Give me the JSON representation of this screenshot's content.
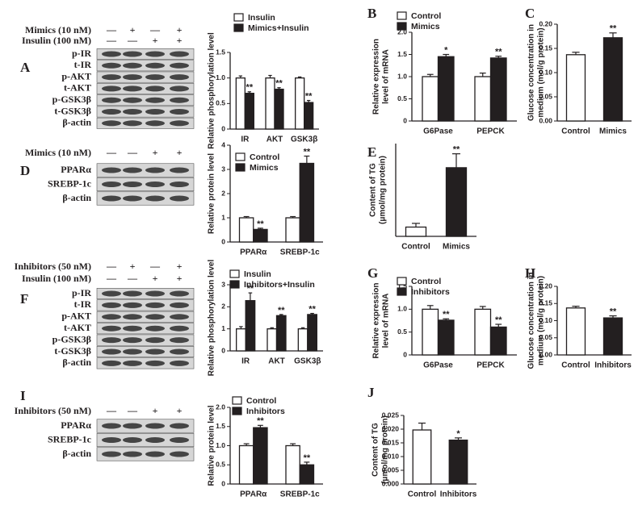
{
  "chart_data": [
    {
      "type": "bar",
      "ylabel": [
        "Relative phosphorylation level"
      ],
      "categories": [
        "IR",
        "AKT",
        "GSK3β"
      ],
      "ylim": [
        0,
        1.5
      ],
      "yticks": [
        0,
        0.5,
        {
          "value": 1,
          "label": "1.0"
        },
        1.5
      ],
      "series": [
        {
          "name": "Insulin",
          "color": "#ffffff",
          "values": [
            1.0,
            1.0,
            1.0
          ],
          "errors": [
            0.04,
            0.05,
            0.02
          ],
          "stars": [
            null,
            null,
            null
          ]
        },
        {
          "name": "Mimics+Insulin",
          "color": "#231f20",
          "values": [
            0.7,
            0.78,
            0.52
          ],
          "errors": [
            0.03,
            0.03,
            0.04
          ],
          "stars": [
            "**",
            "**",
            "**"
          ]
        }
      ]
    },
    {
      "type": "bar",
      "panel": "B",
      "ylabel": [
        "Relative expression",
        "level of mRNA"
      ],
      "categories": [
        "G6Pase",
        "PEPCK"
      ],
      "ylim": [
        0,
        2
      ],
      "yticks": [
        0,
        0.5,
        {
          "value": 1,
          "label": "1.0"
        },
        1.5,
        {
          "value": 2,
          "label": "2.0"
        }
      ],
      "series": [
        {
          "name": "Control",
          "color": "#ffffff",
          "values": [
            1.0,
            1.0
          ],
          "errors": [
            0.05,
            0.08
          ],
          "stars": [
            null,
            null
          ]
        },
        {
          "name": "Mimics",
          "color": "#231f20",
          "values": [
            1.45,
            1.42
          ],
          "errors": [
            0.05,
            0.04
          ],
          "stars": [
            "*",
            "**"
          ]
        }
      ]
    },
    {
      "type": "bar",
      "panel": "C",
      "ylabel": [
        "Glucose concentration in",
        "medium (mol/g protein)"
      ],
      "categories": [
        "Control",
        "Mimics"
      ],
      "ylim": [
        0,
        0.2
      ],
      "yticks": [
        {
          "value": 0,
          "label": "0.00"
        },
        {
          "value": 0.05,
          "label": "0.05"
        },
        {
          "value": 0.1,
          "label": "0.10"
        },
        {
          "value": 0.15,
          "label": "0.15"
        },
        {
          "value": 0.2,
          "label": "0.20"
        }
      ],
      "values": [
        0.137,
        0.172
      ],
      "errors": [
        0.005,
        0.01
      ],
      "colors": [
        "#ffffff",
        "#231f20"
      ],
      "stars": [
        null,
        "**"
      ]
    },
    {
      "type": "bar",
      "ylabel": [
        "Relative protein level"
      ],
      "categories": [
        "PPARα",
        "SREBP-1c"
      ],
      "ylim": [
        0,
        4
      ],
      "yticks": [
        0,
        1,
        2,
        3,
        4
      ],
      "series": [
        {
          "name": "Control",
          "color": "#ffffff",
          "values": [
            1.0,
            1.0
          ],
          "errors": [
            0.05,
            0.05
          ],
          "stars": [
            null,
            null
          ]
        },
        {
          "name": "Mimics",
          "color": "#231f20",
          "values": [
            0.52,
            3.25
          ],
          "errors": [
            0.05,
            0.3
          ],
          "stars": [
            "**",
            "**"
          ]
        }
      ]
    },
    {
      "type": "bar",
      "panel": "E",
      "ylabel": [
        "Content of TG",
        "(μmol/mg protein)"
      ],
      "categories": [
        "Control",
        "Mimics"
      ],
      "ylim": [
        0,
        0.2
      ],
      "values": [
        0.02,
        0.148
      ],
      "errors": [
        0.008,
        0.03
      ],
      "colors": [
        "#ffffff",
        "#231f20"
      ],
      "stars": [
        null,
        "**"
      ]
    },
    {
      "type": "bar",
      "ylabel": [
        "Relative phosphorylation level"
      ],
      "categories": [
        "IR",
        "AKT",
        "GSK3β"
      ],
      "ylim": [
        0,
        3
      ],
      "yticks": [
        0,
        1,
        2,
        3
      ],
      "series": [
        {
          "name": "Insulin",
          "color": "#ffffff",
          "values": [
            1.0,
            1.0,
            1.0
          ],
          "errors": [
            0.1,
            0.05,
            0.05
          ],
          "stars": [
            null,
            null,
            null
          ]
        },
        {
          "name": "Inhibitors+Insulin",
          "color": "#231f20",
          "values": [
            2.28,
            1.6,
            1.65
          ],
          "errors": [
            0.35,
            0.05,
            0.05
          ],
          "stars": [
            "**",
            "**",
            "**"
          ]
        }
      ]
    },
    {
      "type": "bar",
      "panel": "G",
      "ylabel": [
        "Relative expression",
        "level of mRNA"
      ],
      "categories": [
        "G6Pase",
        "PEPCK"
      ],
      "ylim": [
        0,
        1.5
      ],
      "yticks": [
        0,
        0.5,
        {
          "value": 1,
          "label": "1.0"
        },
        1.5
      ],
      "series": [
        {
          "name": "Control",
          "color": "#ffffff",
          "values": [
            1.0,
            1.0
          ],
          "errors": [
            0.08,
            0.06
          ],
          "stars": [
            null,
            null
          ]
        },
        {
          "name": "Inhibitors",
          "color": "#231f20",
          "values": [
            0.76,
            0.61
          ],
          "errors": [
            0.03,
            0.06
          ],
          "stars": [
            "**",
            "**"
          ]
        }
      ]
    },
    {
      "type": "bar",
      "panel": "H",
      "ylabel": [
        "Glucose concentration in",
        "medium (mol/g protein)"
      ],
      "categories": [
        "Control",
        "Inhibitors"
      ],
      "ylim": [
        0,
        0.2
      ],
      "yticks": [
        {
          "value": 0,
          "label": "0.00"
        },
        {
          "value": 0.05,
          "label": "0.05"
        },
        {
          "value": 0.1,
          "label": "0.10"
        },
        {
          "value": 0.15,
          "label": "0.15"
        },
        {
          "value": 0.2,
          "label": "0.20"
        }
      ],
      "values": [
        0.137,
        0.108
      ],
      "errors": [
        0.005,
        0.006
      ],
      "colors": [
        "#ffffff",
        "#231f20"
      ],
      "stars": [
        null,
        "**"
      ]
    },
    {
      "type": "bar",
      "ylabel": [
        "Relative protein level"
      ],
      "categories": [
        "PPARα",
        "SREBP-1c"
      ],
      "ylim": [
        0,
        2
      ],
      "yticks": [
        0,
        0.5,
        {
          "value": 1,
          "label": "1.0"
        },
        1.5,
        {
          "value": 2,
          "label": "2.0"
        }
      ],
      "series": [
        {
          "name": "Control",
          "color": "#ffffff",
          "values": [
            1.0,
            1.0
          ],
          "errors": [
            0.05,
            0.05
          ],
          "stars": [
            null,
            null
          ]
        },
        {
          "name": "Inhibitors",
          "color": "#231f20",
          "values": [
            1.47,
            0.5
          ],
          "errors": [
            0.06,
            0.07
          ],
          "stars": [
            "**",
            "**"
          ]
        }
      ]
    },
    {
      "type": "bar",
      "panel": "J",
      "ylabel": [
        "Content of TG",
        "(μmol/mg protein)"
      ],
      "categories": [
        "Control",
        "Inhibitors"
      ],
      "ylim": [
        0,
        0.025
      ],
      "yticks": [
        {
          "value": 0,
          "label": "0.000"
        },
        {
          "value": 0.005,
          "label": "0.005"
        },
        {
          "value": 0.01,
          "label": "0.010"
        },
        {
          "value": 0.015,
          "label": "0.015"
        },
        {
          "value": 0.02,
          "label": "0.020"
        },
        {
          "value": 0.025,
          "label": "0.025"
        }
      ],
      "values": [
        0.0197,
        0.016
      ],
      "errors": [
        0.0025,
        0.0008
      ],
      "colors": [
        "#ffffff",
        "#231f20"
      ],
      "stars": [
        null,
        "*"
      ]
    }
  ],
  "blots": [
    {
      "panel": "A",
      "treatments": [
        {
          "name": "Mimics (10 nM)",
          "signs": [
            "—",
            "+",
            "—",
            "+"
          ]
        },
        {
          "name": "Insulin (100 nM)",
          "signs": [
            "—",
            "—",
            "+",
            "+"
          ]
        }
      ],
      "rows": [
        "p-IR",
        "t-IR",
        "p-AKT",
        "t-AKT",
        "p-GSK3β",
        "t-GSK3β",
        "β-actin"
      ]
    },
    {
      "panel": "D",
      "treatments": [
        {
          "name": "Mimics (10 nM)",
          "signs": [
            "—",
            "—",
            "+",
            "+"
          ]
        }
      ],
      "rows": [
        "PPARα",
        "SREBP-1c",
        "β-actin"
      ]
    },
    {
      "panel": "F",
      "treatments": [
        {
          "name": "Inhibitors (50 nM)",
          "signs": [
            "—",
            "+",
            "—",
            "+"
          ]
        },
        {
          "name": "Insulin (100 nM)",
          "signs": [
            "—",
            "—",
            "+",
            "+"
          ]
        }
      ],
      "rows": [
        "p-IR",
        "t-IR",
        "p-AKT",
        "t-AKT",
        "p-GSK3β",
        "t-GSK3β",
        "β-actin"
      ]
    },
    {
      "panel": "I",
      "treatments": [
        {
          "name": "Inhibitors (50 nM)",
          "signs": [
            "—",
            "—",
            "+",
            "+"
          ]
        }
      ],
      "rows": [
        "PPARα",
        "SREBP-1c",
        "β-actin"
      ]
    }
  ]
}
